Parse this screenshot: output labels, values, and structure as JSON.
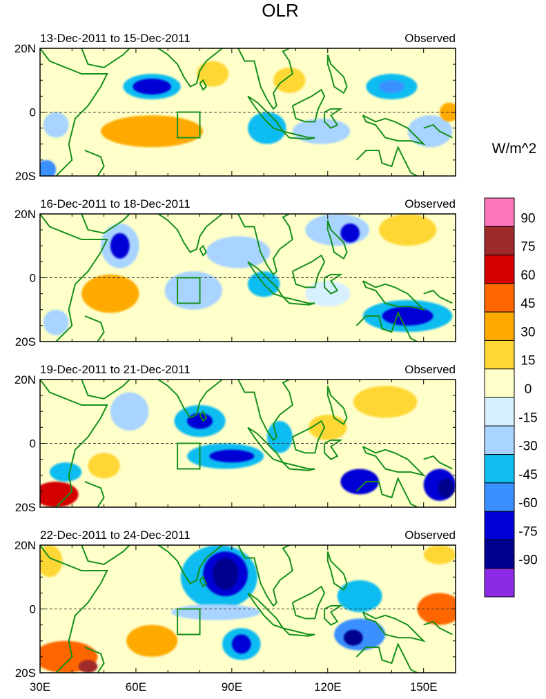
{
  "chart_data": {
    "type": "heatmap",
    "title": "OLR",
    "units": "W/m^2",
    "x_ticks": [
      "30E",
      "60E",
      "90E",
      "120E",
      "150E"
    ],
    "x_tick_values": [
      30,
      60,
      90,
      120,
      150
    ],
    "xlim": [
      30,
      160
    ],
    "y_ticks": [
      "20N",
      "0",
      "20S"
    ],
    "y_tick_values": [
      20,
      0,
      -20
    ],
    "ylim": [
      -20,
      20
    ],
    "colorbar": {
      "labels": [
        "90",
        "75",
        "60",
        "45",
        "30",
        "15",
        "0",
        "-15",
        "-30",
        "-45",
        "-60",
        "-75",
        "-90"
      ],
      "levels": [
        90,
        75,
        60,
        45,
        30,
        15,
        0,
        -15,
        -30,
        -45,
        -60,
        -75,
        -90
      ],
      "colors": [
        "#ff77bb",
        "#9e2a2a",
        "#d40000",
        "#ff6600",
        "#ffaa00",
        "#ffd736",
        "#ffffc9",
        "#d6f0ff",
        "#a8d4ff",
        "#10bcf0",
        "#3a90ff",
        "#0000d6",
        "#00008e",
        "#8c2be6"
      ]
    },
    "box_region": {
      "lon": [
        73,
        80
      ],
      "lat": [
        -8,
        0
      ]
    },
    "panels": [
      {
        "period": "13-Dec-2011 to 15-Dec-2011",
        "label": "Observed",
        "background": 0,
        "blobs": [
          {
            "lon": 65,
            "lat": 8,
            "rx": 9,
            "ry": 4,
            "value": -45
          },
          {
            "lon": 65,
            "lat": 8,
            "rx": 6,
            "ry": 2.5,
            "value": -75
          },
          {
            "lon": 65,
            "lat": -6,
            "rx": 16,
            "ry": 5,
            "value": 30
          },
          {
            "lon": 84,
            "lat": 12,
            "rx": 5,
            "ry": 4,
            "value": 20
          },
          {
            "lon": 101,
            "lat": -5,
            "rx": 6,
            "ry": 5,
            "value": -45
          },
          {
            "lon": 108,
            "lat": 10,
            "rx": 5,
            "ry": 4,
            "value": 20
          },
          {
            "lon": 118,
            "lat": -6,
            "rx": 9,
            "ry": 4,
            "value": -30
          },
          {
            "lon": 140,
            "lat": 8,
            "rx": 8,
            "ry": 4,
            "value": -45
          },
          {
            "lon": 140,
            "lat": 8,
            "rx": 4,
            "ry": 2,
            "value": -60
          },
          {
            "lon": 152,
            "lat": -6,
            "rx": 7,
            "ry": 5,
            "value": -30
          },
          {
            "lon": 158,
            "lat": 0,
            "rx": 3,
            "ry": 3,
            "value": 30
          },
          {
            "lon": 35,
            "lat": -4,
            "rx": 4,
            "ry": 4,
            "value": -30
          },
          {
            "lon": 32,
            "lat": -18,
            "rx": 3,
            "ry": 3,
            "value": -60
          }
        ]
      },
      {
        "period": "16-Dec-2011 to 18-Dec-2011",
        "label": "Observed",
        "background": 0,
        "blobs": [
          {
            "lon": 55,
            "lat": 10,
            "rx": 6,
            "ry": 7,
            "value": -30
          },
          {
            "lon": 55,
            "lat": 10,
            "rx": 3,
            "ry": 4,
            "value": -75
          },
          {
            "lon": 52,
            "lat": -5,
            "rx": 9,
            "ry": 6,
            "value": 30
          },
          {
            "lon": 78,
            "lat": -4,
            "rx": 9,
            "ry": 6,
            "value": -30
          },
          {
            "lon": 92,
            "lat": 8,
            "rx": 10,
            "ry": 5,
            "value": -30
          },
          {
            "lon": 100,
            "lat": -2,
            "rx": 5,
            "ry": 4,
            "value": -45
          },
          {
            "lon": 123,
            "lat": 15,
            "rx": 10,
            "ry": 5,
            "value": -30
          },
          {
            "lon": 127,
            "lat": 14,
            "rx": 3,
            "ry": 3,
            "value": -75
          },
          {
            "lon": 145,
            "lat": 15,
            "rx": 9,
            "ry": 5,
            "value": 20
          },
          {
            "lon": 145,
            "lat": -12,
            "rx": 14,
            "ry": 5,
            "value": -45
          },
          {
            "lon": 145,
            "lat": -12,
            "rx": 8,
            "ry": 3,
            "value": -75
          },
          {
            "lon": 120,
            "lat": -5,
            "rx": 7,
            "ry": 4,
            "value": -15
          },
          {
            "lon": 35,
            "lat": -14,
            "rx": 4,
            "ry": 4,
            "value": -30
          }
        ]
      },
      {
        "period": "19-Dec-2011 to 21-Dec-2011",
        "label": "Observed",
        "background": 0,
        "blobs": [
          {
            "lon": 58,
            "lat": 10,
            "rx": 6,
            "ry": 6,
            "value": -30
          },
          {
            "lon": 80,
            "lat": 7,
            "rx": 8,
            "ry": 5,
            "value": -45
          },
          {
            "lon": 80,
            "lat": 7,
            "rx": 4,
            "ry": 2.5,
            "value": -75
          },
          {
            "lon": 88,
            "lat": -4,
            "rx": 12,
            "ry": 4,
            "value": -45
          },
          {
            "lon": 90,
            "lat": -4,
            "rx": 7,
            "ry": 2,
            "value": -75
          },
          {
            "lon": 105,
            "lat": 2,
            "rx": 4,
            "ry": 5,
            "value": -45
          },
          {
            "lon": 120,
            "lat": 5,
            "rx": 6,
            "ry": 4,
            "value": 20
          },
          {
            "lon": 138,
            "lat": 13,
            "rx": 10,
            "ry": 5,
            "value": 20
          },
          {
            "lon": 130,
            "lat": -12,
            "rx": 6,
            "ry": 4,
            "value": -75
          },
          {
            "lon": 155,
            "lat": -13,
            "rx": 5,
            "ry": 5,
            "value": -75
          },
          {
            "lon": 157,
            "lat": -14,
            "rx": 2.5,
            "ry": 3,
            "value": -90
          },
          {
            "lon": 35,
            "lat": -16,
            "rx": 7,
            "ry": 4,
            "value": 60
          },
          {
            "lon": 38,
            "lat": -9,
            "rx": 5,
            "ry": 3,
            "value": -45
          },
          {
            "lon": 50,
            "lat": -7,
            "rx": 5,
            "ry": 4,
            "value": 20
          }
        ]
      },
      {
        "period": "22-Dec-2011 to 24-Dec-2011",
        "label": "Observed",
        "background": 0,
        "blobs": [
          {
            "lon": 86,
            "lat": 10,
            "rx": 12,
            "ry": 10,
            "value": -45
          },
          {
            "lon": 88,
            "lat": 11,
            "rx": 7,
            "ry": 7,
            "value": -75
          },
          {
            "lon": 88,
            "lat": 11,
            "rx": 4,
            "ry": 5,
            "value": -90
          },
          {
            "lon": 85,
            "lat": -1,
            "rx": 14,
            "ry": 2.5,
            "value": -30
          },
          {
            "lon": 93,
            "lat": -11,
            "rx": 6,
            "ry": 5,
            "value": -45
          },
          {
            "lon": 93,
            "lat": -11,
            "rx": 3,
            "ry": 3,
            "value": -75
          },
          {
            "lon": 130,
            "lat": 4,
            "rx": 7,
            "ry": 5,
            "value": -45
          },
          {
            "lon": 130,
            "lat": -8,
            "rx": 8,
            "ry": 5,
            "value": -60
          },
          {
            "lon": 128,
            "lat": -9,
            "rx": 3,
            "ry": 2.5,
            "value": -90
          },
          {
            "lon": 38,
            "lat": -15,
            "rx": 10,
            "ry": 5,
            "value": 45
          },
          {
            "lon": 45,
            "lat": -18,
            "rx": 3,
            "ry": 2,
            "value": 75
          },
          {
            "lon": 65,
            "lat": -10,
            "rx": 8,
            "ry": 5,
            "value": 30
          },
          {
            "lon": 155,
            "lat": 0,
            "rx": 7,
            "ry": 5,
            "value": 45
          },
          {
            "lon": 155,
            "lat": 17,
            "rx": 5,
            "ry": 3,
            "value": 20
          },
          {
            "lon": 33,
            "lat": 15,
            "rx": 4,
            "ry": 5,
            "value": 20
          }
        ]
      }
    ]
  }
}
